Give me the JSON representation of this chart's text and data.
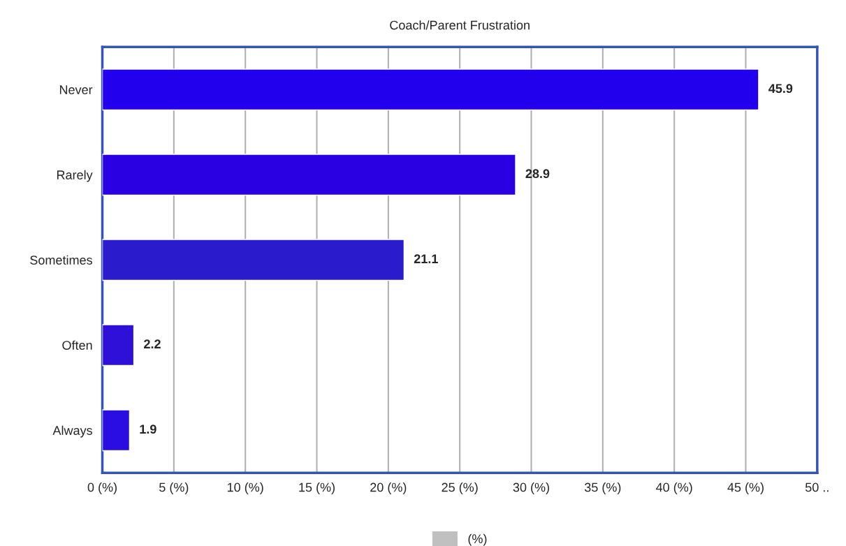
{
  "chart_data": {
    "type": "bar",
    "orientation": "horizontal",
    "title": "Coach/Parent Frustration",
    "categories": [
      "Never",
      "Rarely",
      "Sometimes",
      "Often",
      "Always"
    ],
    "series": [
      {
        "name": "(%)",
        "color": "#c0c0c0",
        "colors": [
          "#2200ee",
          "#2a00e2",
          "#2a1ccc",
          "#2e10d8",
          "#2a0de0"
        ],
        "values": [
          45.9,
          28.9,
          21.1,
          2.2,
          1.9
        ]
      }
    ],
    "xlim": [
      0,
      50
    ],
    "xticks": [
      {
        "value": 0,
        "label": "0 (%)"
      },
      {
        "value": 5,
        "label": "5 (%)"
      },
      {
        "value": 10,
        "label": "10 (%)"
      },
      {
        "value": 15,
        "label": "15 (%)"
      },
      {
        "value": 20,
        "label": "20 (%)"
      },
      {
        "value": 25,
        "label": "25 (%)"
      },
      {
        "value": 30,
        "label": "30 (%)"
      },
      {
        "value": 35,
        "label": "35 (%)"
      },
      {
        "value": 40,
        "label": "40 (%)"
      },
      {
        "value": 45,
        "label": "45 (%)"
      },
      {
        "value": 50,
        "label": "50 .."
      }
    ],
    "grid": "x",
    "legend": "bottom",
    "data_labels": true
  }
}
